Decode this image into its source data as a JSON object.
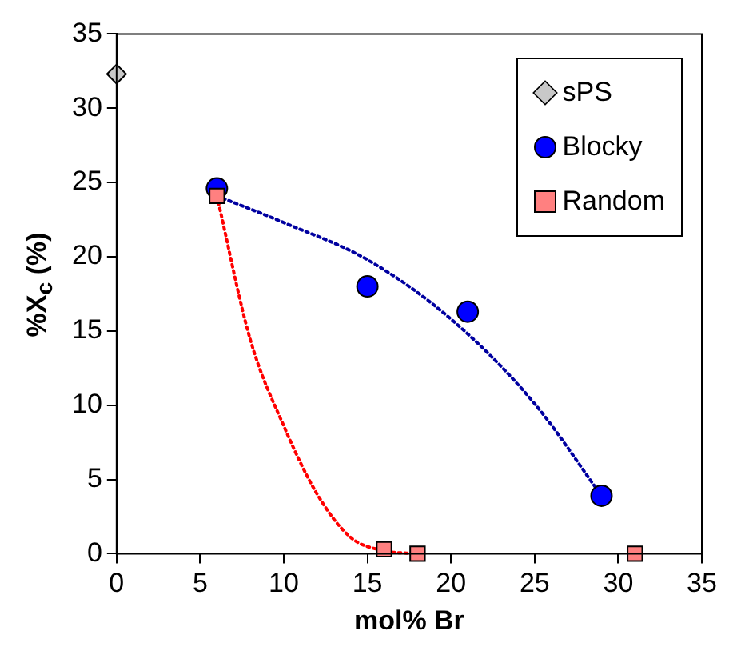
{
  "chart_data": {
    "type": "scatter",
    "xlabel": "mol% Br",
    "ylabel": "%X$_{c}$ (%)",
    "xlim": [
      0,
      35
    ],
    "ylim": [
      0,
      35
    ],
    "xticks": [
      0,
      5,
      10,
      15,
      20,
      25,
      30,
      35
    ],
    "yticks": [
      0,
      5,
      10,
      15,
      20,
      25,
      30,
      35
    ],
    "grid": false,
    "legend": "top right",
    "series": [
      {
        "name": "sPS",
        "color": "#c8c8c8",
        "marker": "diamond",
        "x": [
          0
        ],
        "values": [
          32.3
        ]
      },
      {
        "name": "Blocky",
        "color": "#0000ff",
        "marker": "circle",
        "x": [
          6,
          15,
          21,
          29
        ],
        "values": [
          24.6,
          18,
          16.3,
          3.9
        ]
      },
      {
        "name": "Random",
        "color": "#ff8080",
        "marker": "square",
        "x": [
          6,
          16,
          18,
          31
        ],
        "values": [
          24.1,
          0.3,
          0,
          0
        ]
      },
      {
        "type": "line",
        "color": "#0000a0",
        "marker": "none",
        "line_style": "dotted",
        "x": [
          6,
          10,
          15,
          20,
          25,
          29
        ],
        "values": [
          24.1,
          22.3,
          19.8,
          15.8,
          10.1,
          3.9
        ]
      },
      {
        "type": "line",
        "color": "#ff0000",
        "marker": "none",
        "line_style": "dotted",
        "x": [
          6,
          8,
          10,
          12,
          14,
          16,
          18
        ],
        "values": [
          24.1,
          14.4,
          8.6,
          4.0,
          1.1,
          0.2,
          0
        ]
      }
    ]
  }
}
